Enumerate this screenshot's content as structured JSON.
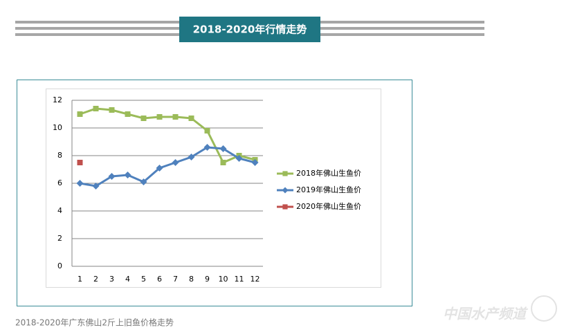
{
  "header": {
    "title": "2018-2020年行情走势"
  },
  "caption": "2018-2020年广东佛山2斤上旧鱼价格走势",
  "watermark": "中国水产频道",
  "chart_data": {
    "type": "line",
    "categories": [
      "1",
      "2",
      "3",
      "4",
      "5",
      "6",
      "7",
      "8",
      "9",
      "10",
      "11",
      "12"
    ],
    "series": [
      {
        "name": "2018年佛山生鱼价",
        "color": "#9bbb59",
        "marker": "square",
        "values": [
          11.0,
          11.4,
          11.3,
          11.0,
          10.7,
          10.8,
          10.8,
          10.7,
          9.8,
          7.5,
          8.0,
          7.7
        ]
      },
      {
        "name": "2019年佛山生鱼价",
        "color": "#4f81bd",
        "marker": "diamond",
        "values": [
          6.0,
          5.8,
          6.5,
          6.6,
          6.1,
          7.1,
          7.5,
          7.9,
          8.6,
          8.5,
          7.8,
          7.5
        ]
      },
      {
        "name": "2020年佛山生鱼价",
        "color": "#c0504d",
        "marker": "square",
        "values": [
          7.5,
          null,
          null,
          null,
          null,
          null,
          null,
          null,
          null,
          null,
          null,
          null
        ]
      }
    ],
    "ylim": [
      0,
      12
    ],
    "yticks": [
      0,
      2,
      4,
      6,
      8,
      10,
      12
    ],
    "grid": true,
    "legend": "right"
  }
}
